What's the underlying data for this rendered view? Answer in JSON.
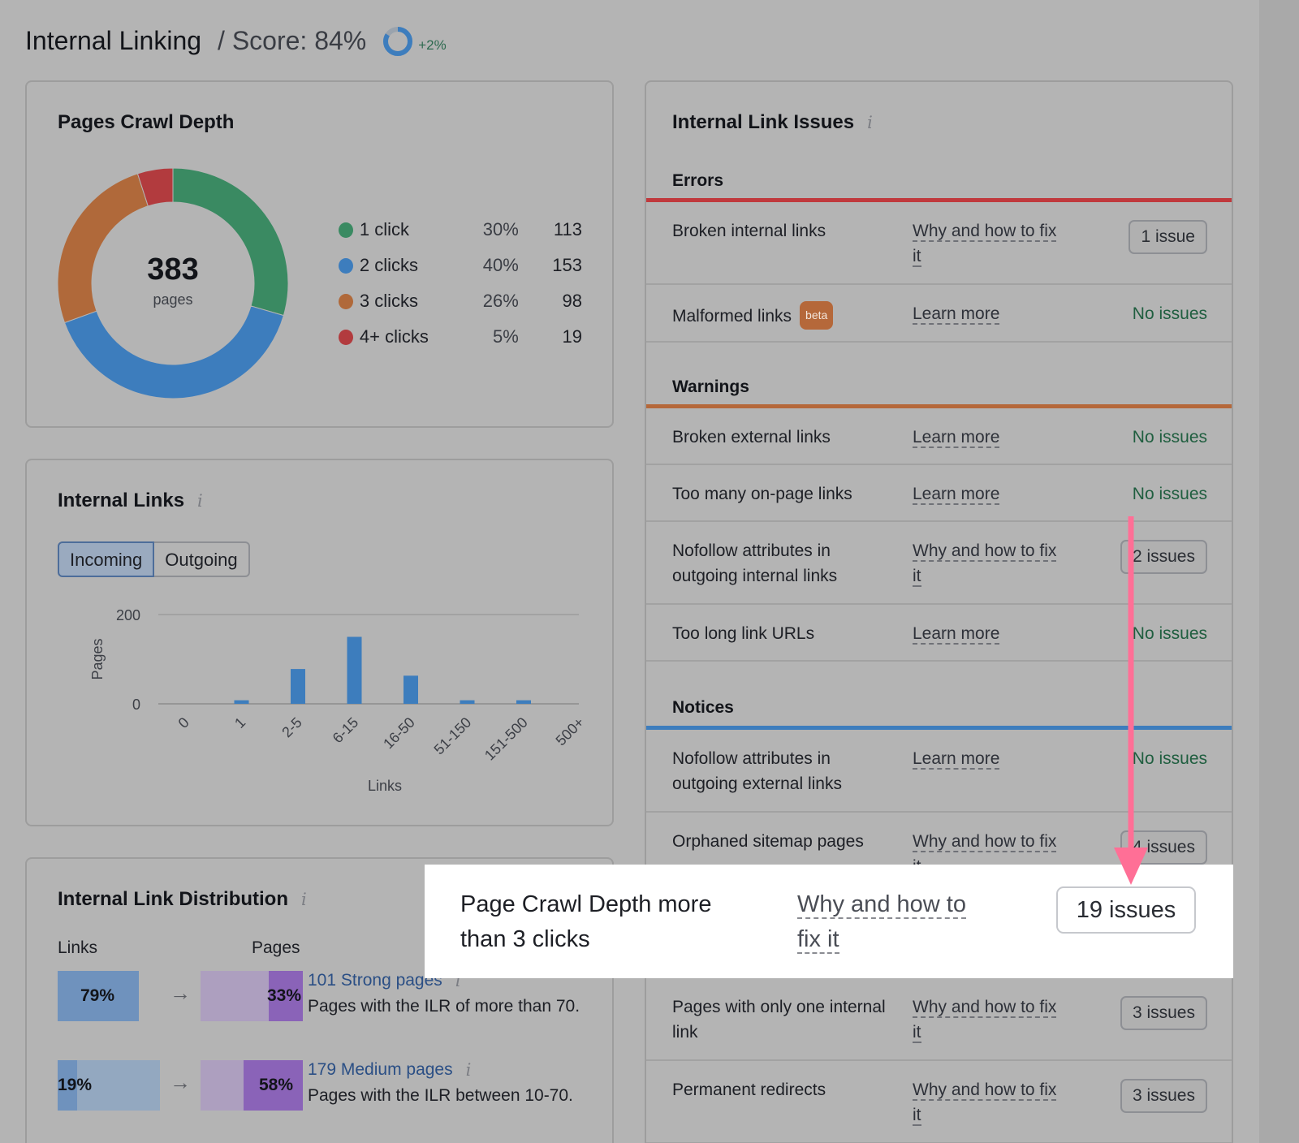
{
  "header": {
    "title": "Internal Linking",
    "score": "/ Score: 84%",
    "delta": "+2%",
    "score_value": 84
  },
  "crawl_depth": {
    "title": "Pages Crawl Depth",
    "total": "383",
    "total_label": "pages",
    "items": [
      {
        "label": "1 click",
        "pct": "30%",
        "count": "113",
        "value": 113,
        "color": "#3a8a62"
      },
      {
        "label": "2 clicks",
        "pct": "40%",
        "count": "153",
        "value": 153,
        "color": "#3d7dbd"
      },
      {
        "label": "3 clicks",
        "pct": "26%",
        "count": "98",
        "value": 98,
        "color": "#b0693a"
      },
      {
        "label": "4+ clicks",
        "pct": "5%",
        "count": "19",
        "value": 19,
        "color": "#b23b3e"
      }
    ]
  },
  "internal_links": {
    "title": "Internal Links",
    "tabs": [
      "Incoming",
      "Outgoing"
    ],
    "active_tab": "Incoming"
  },
  "chart_data": {
    "type": "bar",
    "categories": [
      "0",
      "1",
      "2-5",
      "6-15",
      "16-50",
      "51-150",
      "151-500",
      "500+"
    ],
    "values": [
      0,
      8,
      78,
      150,
      63,
      8,
      8,
      0
    ],
    "xlabel": "Links",
    "ylabel": "Pages",
    "ylim": [
      0,
      200
    ],
    "yticks": [
      "200",
      "0"
    ],
    "grid": true,
    "color": "#3d7dbd"
  },
  "distribution": {
    "title": "Internal Link Distribution",
    "col_links": "Links",
    "col_pages": "Pages",
    "rows": [
      {
        "links_pct": "79%",
        "links_value": 79,
        "pages_pct": "33%",
        "pages_value": 33,
        "link": "101 Strong pages",
        "desc": "Pages with the ILR of more than 70."
      },
      {
        "links_pct": "19%",
        "links_value": 19,
        "pages_pct": "58%",
        "pages_value": 58,
        "link": "179 Medium pages",
        "desc": "Pages with the ILR between 10-70."
      }
    ]
  },
  "issues": {
    "title": "Internal Link Issues",
    "errors_title": "Errors",
    "warnings_title": "Warnings",
    "notices_title": "Notices",
    "errors": [
      {
        "name": "Broken internal links",
        "link": "Why and how to fix it",
        "status": "1 issue",
        "pill": true
      },
      {
        "name": "Malformed links",
        "badge": "beta",
        "link": "Learn more",
        "status": "No issues",
        "pill": false
      }
    ],
    "warnings": [
      {
        "name": "Broken external links",
        "link": "Learn more",
        "status": "No issues",
        "pill": false
      },
      {
        "name": "Too many on-page links",
        "link": "Learn more",
        "status": "No issues",
        "pill": false
      },
      {
        "name": "Nofollow attributes in outgoing internal links",
        "link": "Why and how to fix it",
        "status": "2 issues",
        "pill": true
      },
      {
        "name": "Too long link URLs",
        "link": "Learn more",
        "status": "No issues",
        "pill": false
      }
    ],
    "notices": [
      {
        "name": "Nofollow attributes in outgoing external links",
        "link": "Learn more",
        "status": "No issues",
        "pill": false
      },
      {
        "name": "Orphaned sitemap pages",
        "link": "Why and how to fix it",
        "status": "4 issues",
        "pill": true
      },
      {
        "name": "Pages with only one internal link",
        "link": "Why and how to fix it",
        "status": "3 issues",
        "pill": true
      },
      {
        "name": "Permanent redirects",
        "link": "Why and how to fix it",
        "status": "3 issues",
        "pill": true
      }
    ]
  },
  "highlight": {
    "name": "Page Crawl Depth more than 3 clicks",
    "link": "Why and how to fix it",
    "status": "19 issues"
  },
  "colors": {
    "errors": "#c0393d",
    "warnings": "#b5683a",
    "notices": "#3d7dbd",
    "arrow": "#ff6f96"
  }
}
